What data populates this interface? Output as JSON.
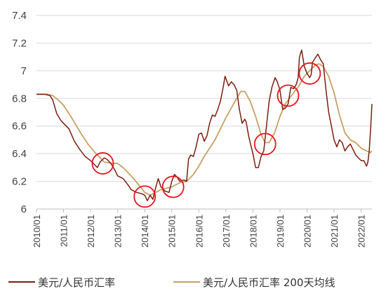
{
  "chart_data": {
    "type": "line",
    "title": "",
    "xlabel": "",
    "ylabel": "",
    "ylim": [
      6,
      7.4
    ],
    "y_ticks": [
      "6",
      "6.2",
      "6.4",
      "6.6",
      "6.8",
      "7",
      "7.2",
      "7.4"
    ],
    "x_ticks": [
      "2010/01",
      "2011/01",
      "2012/01",
      "2013/01",
      "2014/01",
      "2015/01",
      "2016/01",
      "2017/01",
      "2018/01",
      "2019/01",
      "2020/01",
      "2021/01",
      "2022/01"
    ],
    "grid": "horizontal",
    "legend_position": "bottom",
    "series": [
      {
        "name": "美元/人民币汇率",
        "color": "#7B1E0E",
        "x": [
          2010.0,
          2010.3,
          2010.5,
          2010.6,
          2010.75,
          2010.9,
          2011.0,
          2011.2,
          2011.4,
          2011.6,
          2011.8,
          2012.0,
          2012.1,
          2012.25,
          2012.35,
          2012.5,
          2012.6,
          2012.75,
          2012.9,
          2013.0,
          2013.2,
          2013.4,
          2013.5,
          2013.7,
          2013.9,
          2014.0,
          2014.1,
          2014.2,
          2014.3,
          2014.4,
          2014.5,
          2014.6,
          2014.75,
          2014.9,
          2015.0,
          2015.1,
          2015.2,
          2015.3,
          2015.45,
          2015.55,
          2015.62,
          2015.7,
          2015.8,
          2015.9,
          2016.0,
          2016.1,
          2016.2,
          2016.3,
          2016.4,
          2016.5,
          2016.6,
          2016.7,
          2016.8,
          2016.9,
          2016.97,
          2017.1,
          2017.2,
          2017.3,
          2017.4,
          2017.5,
          2017.6,
          2017.7,
          2017.75,
          2017.85,
          2018.0,
          2018.1,
          2018.2,
          2018.3,
          2018.4,
          2018.5,
          2018.6,
          2018.7,
          2018.82,
          2018.9,
          2019.0,
          2019.1,
          2019.2,
          2019.3,
          2019.4,
          2019.5,
          2019.6,
          2019.67,
          2019.72,
          2019.8,
          2019.9,
          2020.0,
          2020.1,
          2020.15,
          2020.2,
          2020.3,
          2020.4,
          2020.5,
          2020.6,
          2020.7,
          2020.8,
          2020.9,
          2021.0,
          2021.1,
          2021.2,
          2021.3,
          2021.4,
          2021.5,
          2021.6,
          2021.7,
          2021.8,
          2021.9,
          2022.0,
          2022.1,
          2022.2,
          2022.25,
          2022.3,
          2022.35,
          2022.4
        ],
        "y": [
          6.83,
          6.83,
          6.82,
          6.79,
          6.69,
          6.64,
          6.62,
          6.58,
          6.49,
          6.43,
          6.38,
          6.35,
          6.33,
          6.3,
          6.34,
          6.37,
          6.36,
          6.33,
          6.28,
          6.24,
          6.22,
          6.17,
          6.14,
          6.12,
          6.11,
          6.1,
          6.06,
          6.1,
          6.07,
          6.15,
          6.22,
          6.16,
          6.13,
          6.12,
          6.2,
          6.25,
          6.23,
          6.2,
          6.21,
          6.2,
          6.36,
          6.39,
          6.38,
          6.45,
          6.54,
          6.55,
          6.49,
          6.53,
          6.62,
          6.68,
          6.67,
          6.72,
          6.78,
          6.88,
          6.96,
          6.89,
          6.92,
          6.9,
          6.86,
          6.72,
          6.62,
          6.65,
          6.63,
          6.52,
          6.4,
          6.3,
          6.3,
          6.38,
          6.42,
          6.6,
          6.78,
          6.88,
          6.95,
          6.92,
          6.86,
          6.72,
          6.73,
          6.76,
          6.88,
          6.87,
          6.9,
          6.95,
          7.1,
          7.15,
          7.03,
          6.98,
          6.95,
          6.97,
          7.06,
          7.09,
          7.12,
          7.08,
          7.05,
          6.86,
          6.7,
          6.6,
          6.5,
          6.45,
          6.5,
          6.48,
          6.42,
          6.45,
          6.47,
          6.43,
          6.39,
          6.37,
          6.35,
          6.35,
          6.31,
          6.34,
          6.42,
          6.58,
          6.76
        ]
      },
      {
        "name": "美元/人民币汇率 200天均线",
        "color": "#C8A063",
        "x": [
          2010.0,
          2010.4,
          2010.6,
          2010.8,
          2011.0,
          2011.3,
          2011.6,
          2011.9,
          2012.2,
          2012.5,
          2012.8,
          2013.0,
          2013.2,
          2013.5,
          2013.8,
          2014.0,
          2014.2,
          2014.4,
          2014.6,
          2014.8,
          2015.0,
          2015.3,
          2015.55,
          2015.8,
          2016.0,
          2016.2,
          2016.4,
          2016.6,
          2016.8,
          2017.0,
          2017.2,
          2017.4,
          2017.55,
          2017.7,
          2017.9,
          2018.1,
          2018.3,
          2018.45,
          2018.6,
          2018.8,
          2019.0,
          2019.2,
          2019.5,
          2019.7,
          2019.9,
          2020.1,
          2020.3,
          2020.45,
          2020.6,
          2020.8,
          2021.0,
          2021.2,
          2021.4,
          2021.6,
          2021.8,
          2022.0,
          2022.2,
          2022.35,
          2022.4
        ],
        "y": [
          6.83,
          6.83,
          6.82,
          6.79,
          6.75,
          6.66,
          6.56,
          6.47,
          6.4,
          6.34,
          6.33,
          6.33,
          6.3,
          6.24,
          6.17,
          6.12,
          6.1,
          6.12,
          6.14,
          6.15,
          6.16,
          6.19,
          6.2,
          6.25,
          6.31,
          6.38,
          6.44,
          6.5,
          6.58,
          6.66,
          6.73,
          6.8,
          6.85,
          6.85,
          6.78,
          6.67,
          6.54,
          6.48,
          6.48,
          6.55,
          6.67,
          6.76,
          6.84,
          6.89,
          6.96,
          7.0,
          7.04,
          7.05,
          7.03,
          6.96,
          6.84,
          6.68,
          6.55,
          6.5,
          6.48,
          6.44,
          6.42,
          6.41,
          6.42
        ]
      }
    ],
    "annotations": [
      {
        "type": "circle",
        "x": 2012.45,
        "y": 6.33,
        "color": "#E8131C"
      },
      {
        "type": "circle",
        "x": 2014.0,
        "y": 6.09,
        "color": "#E8131C"
      },
      {
        "type": "circle",
        "x": 2015.05,
        "y": 6.16,
        "color": "#E8131C"
      },
      {
        "type": "circle",
        "x": 2018.45,
        "y": 6.47,
        "color": "#E8131C"
      },
      {
        "type": "circle",
        "x": 2019.3,
        "y": 6.82,
        "color": "#E8131C"
      },
      {
        "type": "circle",
        "x": 2020.1,
        "y": 6.98,
        "color": "#E8131C"
      }
    ]
  }
}
